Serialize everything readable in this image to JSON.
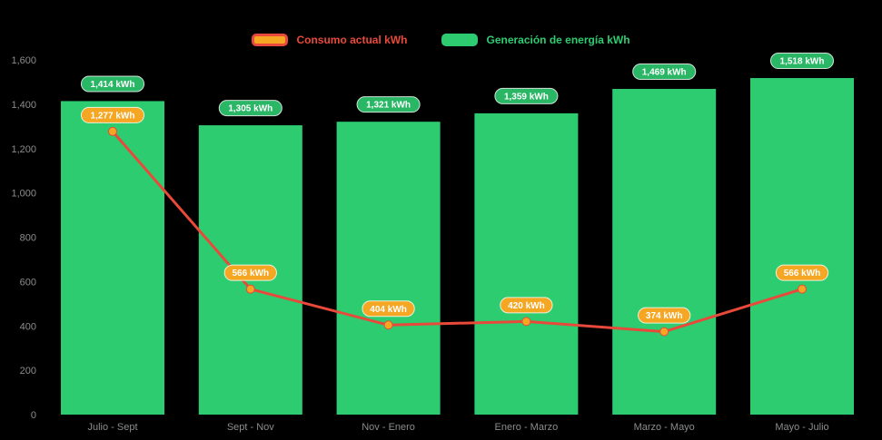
{
  "chart_data": {
    "type": "bar+line",
    "title": "",
    "categories": [
      "Julio - Sept",
      "Sept - Nov",
      "Nov - Enero",
      "Enero - Marzo",
      "Marzo - Mayo",
      "Mayo - Julio"
    ],
    "series": [
      {
        "name": "Consumo actual kWh",
        "type": "line",
        "color": "#e8493a",
        "marker_color": "#f5a623",
        "badge_color": "#f5a623",
        "values": [
          1277,
          566,
          404,
          420,
          374,
          566
        ],
        "labels": [
          "1,277 kWh",
          "566 kWh",
          "404 kWh",
          "420 kWh",
          "374 kWh",
          "566 kWh"
        ]
      },
      {
        "name": "Generación de energía kWh",
        "type": "bar",
        "color": "#2ecc71",
        "badge_color": "#29b765",
        "values": [
          1414,
          1305,
          1321,
          1359,
          1469,
          1518
        ],
        "labels": [
          "1,414 kWh",
          "1,305 kWh",
          "1,321 kWh",
          "1,359 kWh",
          "1,469 kWh",
          "1,518 kWh"
        ]
      }
    ],
    "ylim": [
      0,
      1600
    ],
    "yticks": [
      0,
      200,
      400,
      600,
      800,
      1000,
      1200,
      1400,
      1600
    ],
    "ytick_labels": [
      "0",
      "200",
      "400",
      "600",
      "800",
      "1,000",
      "1,200",
      "1,400",
      "1,600"
    ],
    "grid": false,
    "legend_position": "top",
    "axis_text_color": "#8c8c8c",
    "background": "#000000"
  }
}
